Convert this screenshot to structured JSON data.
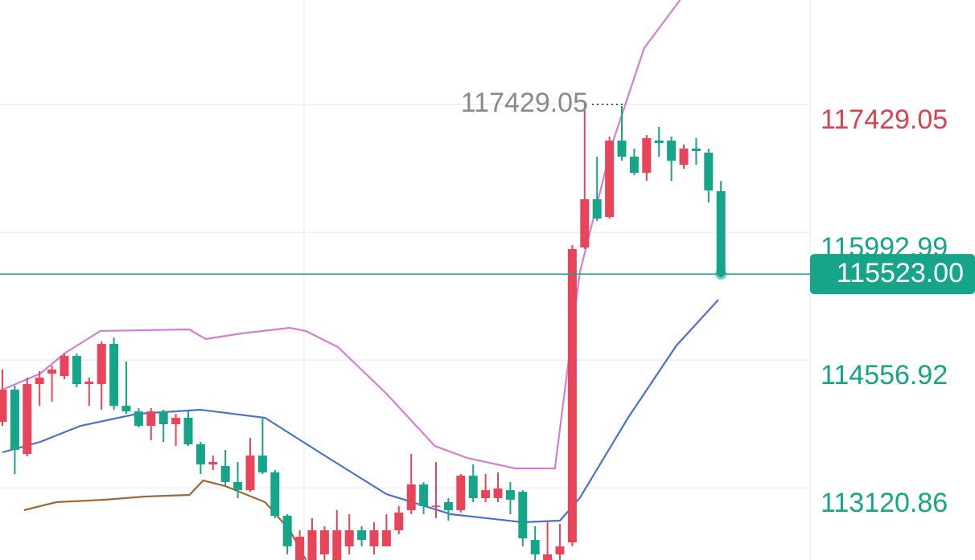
{
  "chart_data": {
    "type": "candlestick",
    "ylim": [
      112310,
      118603
    ],
    "yticks": [
      117429.05,
      115992.99,
      114556.92,
      113120.86
    ],
    "grid": true,
    "up_color": "#e8445a",
    "down_color": "#16a589",
    "max_label": 117429.05,
    "last_price": {
      "value": 115523,
      "label": "115523.00"
    },
    "candles": {
      "open": [
        113863,
        114224,
        113502,
        114287,
        114405,
        114377,
        114603,
        114287,
        114287,
        114739,
        114043,
        113980,
        113818,
        113980,
        113836,
        113908,
        113610,
        113384,
        113366,
        113186,
        113095,
        113484,
        113294,
        112807,
        112310,
        112310,
        112373,
        112310,
        112463,
        112644,
        112463,
        112463,
        112644,
        112870,
        113159,
        112915,
        112960,
        112870,
        113258,
        113005,
        113005,
        113095,
        113077,
        112535,
        112310,
        112373,
        112508,
        115822,
        116364,
        116165,
        117023,
        116842,
        116662,
        117023,
        117023,
        116752,
        116933,
        116888,
        116454
      ],
      "high": [
        114450,
        114269,
        114359,
        114432,
        114495,
        114630,
        114630,
        114359,
        114766,
        114811,
        114540,
        114016,
        114016,
        113998,
        113953,
        113980,
        113637,
        113484,
        113547,
        113411,
        113682,
        113908,
        113321,
        112825,
        112644,
        112780,
        112689,
        112870,
        112825,
        112689,
        112734,
        112825,
        112915,
        113502,
        113186,
        113411,
        113005,
        113276,
        113384,
        113276,
        113294,
        113186,
        113095,
        112689,
        112734,
        112716,
        115849,
        117429,
        116842,
        117068,
        117411,
        116933,
        117086,
        117176,
        117068,
        116978,
        117050,
        116933,
        116570
      ],
      "low": [
        113818,
        113276,
        113475,
        114043,
        114089,
        114341,
        114251,
        114043,
        113998,
        113998,
        113953,
        113800,
        113655,
        113637,
        113592,
        113592,
        113276,
        113321,
        113140,
        113005,
        113077,
        113276,
        112780,
        112373,
        112310,
        112310,
        112310,
        112310,
        112373,
        112463,
        112373,
        112508,
        112599,
        112825,
        112825,
        112780,
        112752,
        112843,
        112960,
        112960,
        112960,
        112825,
        112463,
        112310,
        112310,
        112310,
        112463,
        115804,
        116120,
        116147,
        116797,
        116635,
        116570,
        116842,
        116570,
        116707,
        116752,
        116328,
        115510
      ],
      "close": [
        114224,
        113547,
        114287,
        114359,
        114450,
        114603,
        114287,
        114314,
        114739,
        114043,
        113980,
        113818,
        113980,
        113836,
        113908,
        113610,
        113384,
        113411,
        113186,
        113095,
        113484,
        113294,
        112807,
        112463,
        112572,
        112644,
        112644,
        112644,
        112644,
        112535,
        112644,
        112644,
        112843,
        113159,
        112915,
        112920,
        112870,
        113258,
        113005,
        113095,
        113113,
        112987,
        112553,
        112373,
        112373,
        112463,
        115804,
        116364,
        116147,
        117023,
        116842,
        116662,
        117050,
        116996,
        116797,
        116933,
        116906,
        116463,
        115523
      ]
    },
    "series": [
      {
        "color": "#d47fd0",
        "x": [
          0,
          3.05,
          5,
          7.9,
          15.1,
          16.4,
          19.3,
          23.2,
          24.5,
          27.1,
          31,
          34.9,
          37.5,
          41.4,
          44.6,
          46.6,
          49.2,
          51.8,
          54.7
        ],
        "values": [
          114224,
          114405,
          114630,
          114883,
          114901,
          114793,
          114856,
          114919,
          114883,
          114702,
          114179,
          113592,
          113457,
          113339,
          113339,
          115533,
          116978,
          118061,
          118603
        ]
      },
      {
        "color": "#4a72c8",
        "x": [
          0,
          3.05,
          6.3,
          10.9,
          16.0,
          21.2,
          25.8,
          31,
          36.2,
          42,
          45,
          46.6,
          50.5,
          54.4,
          57.8
        ],
        "values": [
          113520,
          113637,
          113818,
          113953,
          113998,
          113908,
          113502,
          113050,
          112825,
          112734,
          112752,
          113005,
          113908,
          114720,
          115235
        ]
      },
      {
        "color": "#a0683a",
        "x": [
          1.75,
          4.35,
          8.25,
          11.5,
          15.1,
          16.2,
          18,
          21.2,
          23.2,
          24.5
        ],
        "values": [
          112870,
          112960,
          112987,
          113023,
          113041,
          113204,
          113140,
          112960,
          112644,
          112310
        ]
      }
    ]
  }
}
